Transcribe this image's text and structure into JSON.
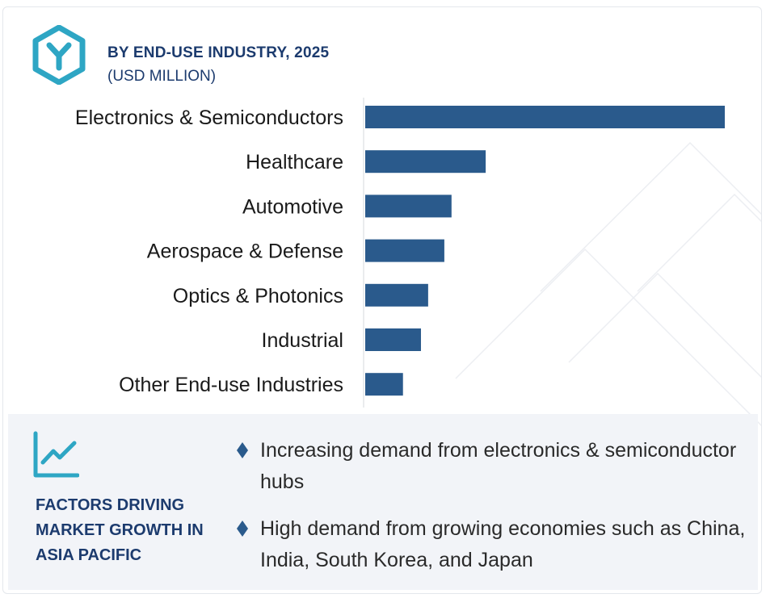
{
  "header": {
    "title": "BY END-USE INDUSTRY, 2025",
    "subtitle": "(USD MILLION)",
    "logo_icon": "hexagon-y-logo-icon"
  },
  "colors": {
    "bar": "#2a5a8c",
    "heading": "#1c3b6e",
    "accent": "#2ea6c4",
    "panel_bg": "#f2f4f8"
  },
  "chart_data": {
    "type": "bar",
    "orientation": "horizontal",
    "title": "BY END-USE INDUSTRY, 2025",
    "subtitle": "(USD MILLION)",
    "categories": [
      "Electronics & Semiconductors",
      "Healthcare",
      "Automotive",
      "Aerospace & Defense",
      "Optics & Photonics",
      "Industrial",
      "Other End-use Industries"
    ],
    "values": [
      100,
      33.5,
      24,
      22,
      17.5,
      15.5,
      10.5
    ],
    "xlim": [
      0,
      100
    ],
    "axis_ticks_shown": false,
    "grid": false,
    "legend": "none"
  },
  "factors": {
    "icon": "line-chart-trend-icon",
    "title": "FACTORS DRIVING\nMARKET GROWTH IN\nASIA PACIFIC",
    "bullet_icon": "diamond-bullet-icon",
    "items": [
      "Increasing demand from electronics & semiconductor hubs",
      "High demand from growing economies such as China, India, South Korea, and Japan"
    ]
  }
}
